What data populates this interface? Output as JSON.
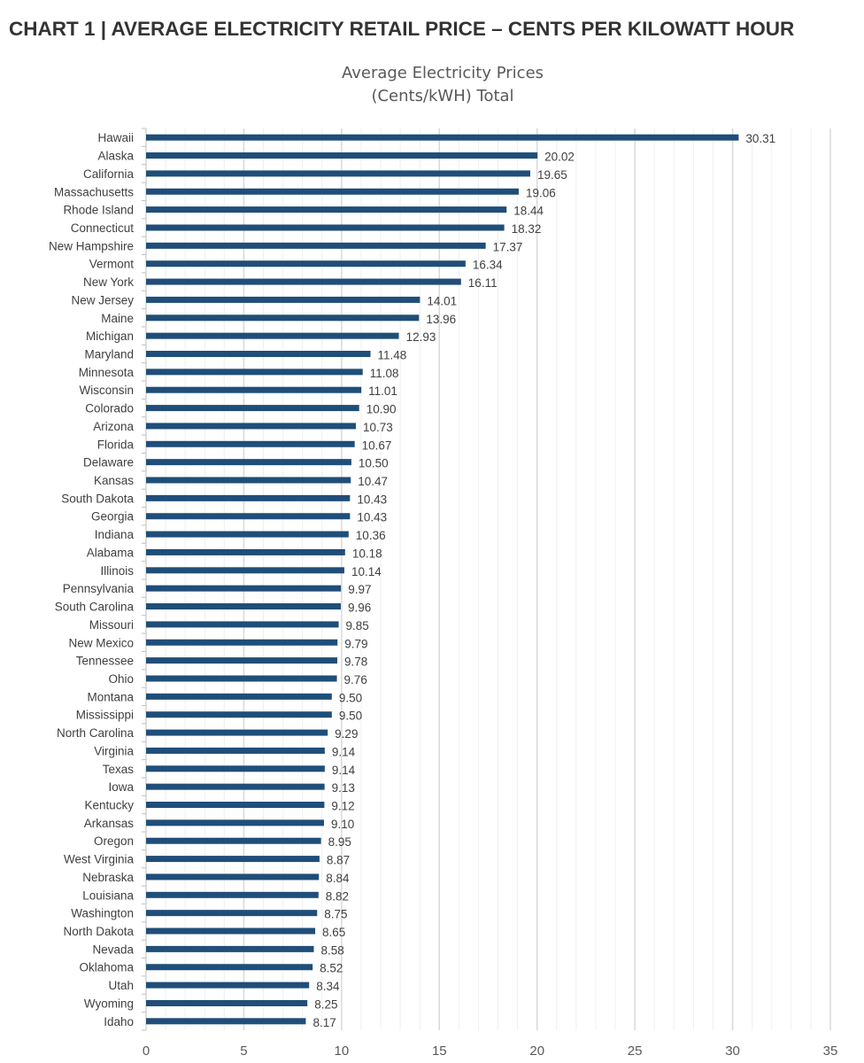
{
  "page": {
    "heading": "CHART 1 | AVERAGE ELECTRICITY RETAIL PRICE – CENTS PER KILOWATT HOUR"
  },
  "chart_data": {
    "type": "bar",
    "orientation": "horizontal",
    "title_line1": "Average Electricity Prices",
    "title_line2": "(Cents/kWH) Total",
    "categories": [
      "Hawaii",
      "Alaska",
      "California",
      "Massachusetts",
      "Rhode Island",
      "Connecticut",
      "New Hampshire",
      "Vermont",
      "New York",
      "New Jersey",
      "Maine",
      "Michigan",
      "Maryland",
      "Minnesota",
      "Wisconsin",
      "Colorado",
      "Arizona",
      "Florida",
      "Delaware",
      "Kansas",
      "South Dakota",
      "Georgia",
      "Indiana",
      "Alabama",
      "Illinois",
      "Pennsylvania",
      "South Carolina",
      "Missouri",
      "New Mexico",
      "Tennessee",
      "Ohio",
      "Montana",
      "Mississippi",
      "North Carolina",
      "Virginia",
      "Texas",
      "Iowa",
      "Kentucky",
      "Arkansas",
      "Oregon",
      "West Virginia",
      "Nebraska",
      "Louisiana",
      "Washington",
      "North Dakota",
      "Nevada",
      "Oklahoma",
      "Utah",
      "Wyoming",
      "Idaho"
    ],
    "values": [
      30.31,
      20.02,
      19.65,
      19.06,
      18.44,
      18.32,
      17.37,
      16.34,
      16.11,
      14.01,
      13.96,
      12.93,
      11.48,
      11.08,
      11.01,
      10.9,
      10.73,
      10.67,
      10.5,
      10.47,
      10.43,
      10.43,
      10.36,
      10.18,
      10.14,
      9.97,
      9.96,
      9.85,
      9.79,
      9.78,
      9.76,
      9.5,
      9.5,
      9.29,
      9.14,
      9.14,
      9.13,
      9.12,
      9.1,
      8.95,
      8.87,
      8.84,
      8.82,
      8.75,
      8.65,
      8.58,
      8.52,
      8.34,
      8.25,
      8.17
    ],
    "value_labels": [
      "30.31",
      "20.02",
      "19.65",
      "19.06",
      "18.44",
      "18.32",
      "17.37",
      "16.34",
      "16.11",
      "14.01",
      "13.96",
      "12.93",
      "11.48",
      "11.08",
      "11.01",
      "10.90",
      "10.73",
      "10.67",
      "10.50",
      "10.47",
      "10.43",
      "10.43",
      "10.36",
      "10.18",
      "10.14",
      "9.97",
      "9.96",
      "9.85",
      "9.79",
      "9.78",
      "9.76",
      "9.50",
      "9.50",
      "9.29",
      "9.14",
      "9.14",
      "9.13",
      "9.12",
      "9.10",
      "8.95",
      "8.87",
      "8.84",
      "8.82",
      "8.75",
      "8.65",
      "8.58",
      "8.52",
      "8.34",
      "8.25",
      "8.17"
    ],
    "xlim": [
      0,
      35
    ],
    "xticks": [
      "0",
      "5",
      "10",
      "15",
      "20",
      "25",
      "30",
      "35"
    ],
    "grid": true,
    "minor_grid_step": 1,
    "bar_color": "#1f4e79"
  }
}
